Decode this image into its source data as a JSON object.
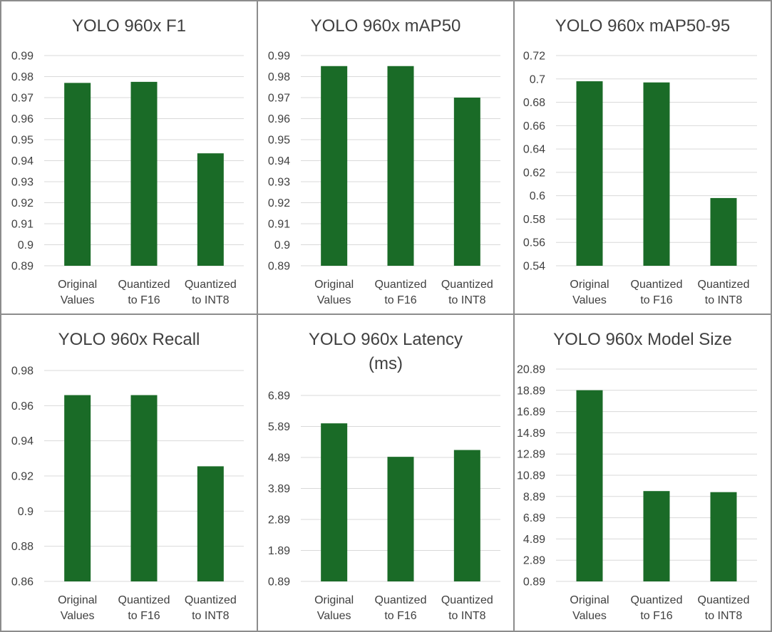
{
  "bar_color": "#1a6b27",
  "chart_data": [
    {
      "type": "bar",
      "title_lines": [
        "YOLO 960x F1"
      ],
      "categories": [
        [
          "Original",
          "Values"
        ],
        [
          "Quantized",
          "to F16"
        ],
        [
          "Quantized",
          "to INT8"
        ]
      ],
      "values": [
        0.977,
        0.9775,
        0.9435
      ],
      "ylim": [
        0.89,
        0.99
      ],
      "yticks": [
        "0.99",
        "0.98",
        "0.97",
        "0.96",
        "0.95",
        "0.94",
        "0.93",
        "0.92",
        "0.91",
        "0.9",
        "0.89"
      ],
      "grid": true,
      "legend": "none"
    },
    {
      "type": "bar",
      "title_lines": [
        "YOLO 960x mAP50"
      ],
      "categories": [
        [
          "Original",
          "Values"
        ],
        [
          "Quantized",
          "to F16"
        ],
        [
          "Quantized",
          "to INT8"
        ]
      ],
      "values": [
        0.985,
        0.985,
        0.97
      ],
      "ylim": [
        0.89,
        0.99
      ],
      "yticks": [
        "0.99",
        "0.98",
        "0.97",
        "0.96",
        "0.95",
        "0.94",
        "0.93",
        "0.92",
        "0.91",
        "0.9",
        "0.89"
      ],
      "grid": true,
      "legend": "none"
    },
    {
      "type": "bar",
      "title_lines": [
        "YOLO 960x mAP50-95"
      ],
      "categories": [
        [
          "Original",
          "Values"
        ],
        [
          "Quantized",
          "to F16"
        ],
        [
          "Quantized",
          "to INT8"
        ]
      ],
      "values": [
        0.698,
        0.697,
        0.598
      ],
      "ylim": [
        0.54,
        0.72
      ],
      "yticks": [
        "0.72",
        "0.7",
        "0.68",
        "0.66",
        "0.64",
        "0.62",
        "0.6",
        "0.58",
        "0.56",
        "0.54"
      ],
      "grid": true,
      "legend": "none"
    },
    {
      "type": "bar",
      "title_lines": [
        "YOLO 960x Recall"
      ],
      "categories": [
        [
          "Original",
          "Values"
        ],
        [
          "Quantized",
          "to F16"
        ],
        [
          "Quantized",
          "to INT8"
        ]
      ],
      "values": [
        0.966,
        0.966,
        0.9255
      ],
      "ylim": [
        0.86,
        0.98
      ],
      "yticks": [
        "0.98",
        "0.96",
        "0.94",
        "0.92",
        "0.9",
        "0.88",
        "0.86"
      ],
      "grid": true,
      "legend": "none"
    },
    {
      "type": "bar",
      "title_lines": [
        "YOLO 960x Latency",
        "(ms)"
      ],
      "categories": [
        [
          "Original",
          "Values"
        ],
        [
          "Quantized",
          "to F16"
        ],
        [
          "Quantized",
          "to INT8"
        ]
      ],
      "values": [
        5.99,
        4.91,
        5.13
      ],
      "ylim": [
        0.89,
        6.89
      ],
      "yticks": [
        "6.89",
        "5.89",
        "4.89",
        "3.89",
        "2.89",
        "1.89",
        "0.89"
      ],
      "grid": true,
      "legend": "none"
    },
    {
      "type": "bar",
      "title_lines": [
        "YOLO 960x Model Size"
      ],
      "categories": [
        [
          "Original",
          "Values"
        ],
        [
          "Quantized",
          "to F16"
        ],
        [
          "Quantized",
          "to INT8"
        ]
      ],
      "values": [
        18.9,
        9.4,
        9.3
      ],
      "ylim": [
        0.89,
        20.89
      ],
      "yticks": [
        "20.89",
        "18.89",
        "16.89",
        "14.89",
        "12.89",
        "10.89",
        "8.89",
        "6.89",
        "4.89",
        "2.89",
        "0.89"
      ],
      "grid": true,
      "legend": "none"
    }
  ]
}
